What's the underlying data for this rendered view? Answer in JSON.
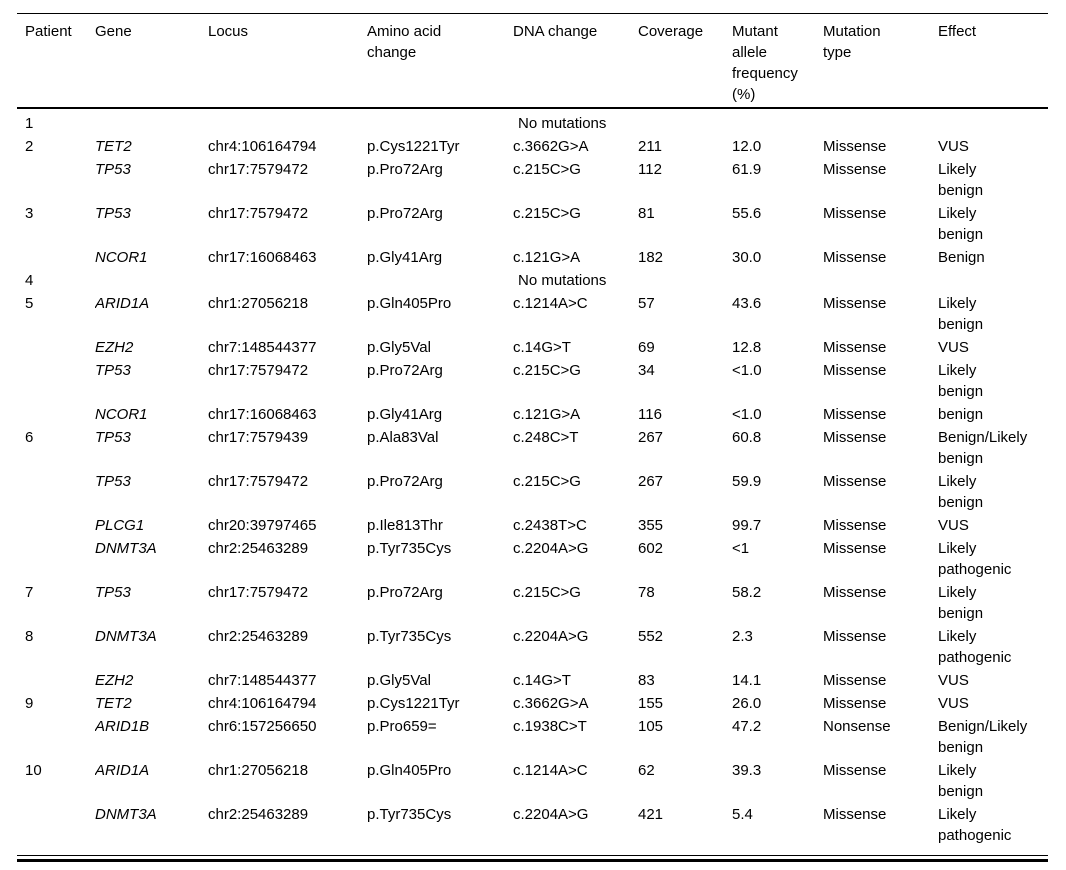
{
  "table": {
    "columns": [
      {
        "key": "patient",
        "label": "Patient"
      },
      {
        "key": "gene",
        "label": "Gene"
      },
      {
        "key": "locus",
        "label": "Locus"
      },
      {
        "key": "aa",
        "label": "Amino acid\nchange"
      },
      {
        "key": "dna",
        "label": "DNA change"
      },
      {
        "key": "coverage",
        "label": "Coverage"
      },
      {
        "key": "maf",
        "label": "Mutant\nallele\nfrequency\n(%)"
      },
      {
        "key": "type",
        "label": "Mutation\ntype"
      },
      {
        "key": "effect",
        "label": "Effect"
      }
    ],
    "rows": [
      {
        "patient": "1",
        "span_text": "No mutations"
      },
      {
        "patient": "2",
        "gene": "TET2",
        "locus": "chr4:106164794",
        "aa": "p.Cys1221Tyr",
        "dna": "c.3662G>A",
        "coverage": "211",
        "maf": "12.0",
        "type": "Missense",
        "effect": "VUS"
      },
      {
        "patient": "",
        "gene": "TP53",
        "locus": "chr17:7579472",
        "aa": "p.Pro72Arg",
        "dna": "c.215C>G",
        "coverage": "112",
        "maf": "61.9",
        "type": "Missense",
        "effect": "Likely\nbenign"
      },
      {
        "patient": "3",
        "gene": "TP53",
        "locus": "chr17:7579472",
        "aa": "p.Pro72Arg",
        "dna": "c.215C>G",
        "coverage": "81",
        "maf": "55.6",
        "type": "Missense",
        "effect": "Likely\nbenign"
      },
      {
        "patient": "",
        "gene": "NCOR1",
        "locus": "chr17:16068463",
        "aa": "p.Gly41Arg",
        "dna": "c.121G>A",
        "coverage": "182",
        "maf": "30.0",
        "type": "Missense",
        "effect": "Benign"
      },
      {
        "patient": "4",
        "span_text": "No mutations"
      },
      {
        "patient": "5",
        "gene": "ARID1A",
        "locus": "chr1:27056218",
        "aa": "p.Gln405Pro",
        "dna": "c.1214A>C",
        "coverage": "57",
        "maf": "43.6",
        "type": "Missense",
        "effect": "Likely\nbenign"
      },
      {
        "patient": "",
        "gene": "EZH2",
        "locus": "chr7:148544377",
        "aa": "p.Gly5Val",
        "dna": "c.14G>T",
        "coverage": "69",
        "maf": "12.8",
        "type": "Missense",
        "effect": "VUS"
      },
      {
        "patient": "",
        "gene": "TP53",
        "locus": "chr17:7579472",
        "aa": "p.Pro72Arg",
        "dna": "c.215C>G",
        "coverage": "34",
        "maf": "<1.0",
        "type": "Missense",
        "effect": "Likely\nbenign"
      },
      {
        "patient": "",
        "gene": "NCOR1",
        "locus": "chr17:16068463",
        "aa": "p.Gly41Arg",
        "dna": "c.121G>A",
        "coverage": "116",
        "maf": "<1.0",
        "type": "Missense",
        "effect": "benign"
      },
      {
        "patient": "6",
        "gene": "TP53",
        "locus": "chr17:7579439",
        "aa": "p.Ala83Val",
        "dna": "c.248C>T",
        "coverage": "267",
        "maf": "60.8",
        "type": "Missense",
        "effect": "Benign/Likely\nbenign"
      },
      {
        "patient": "",
        "gene": "TP53",
        "locus": "chr17:7579472",
        "aa": "p.Pro72Arg",
        "dna": "c.215C>G",
        "coverage": "267",
        "maf": "59.9",
        "type": "Missense",
        "effect": "Likely\nbenign"
      },
      {
        "patient": "",
        "gene": "PLCG1",
        "locus": "chr20:39797465",
        "aa": "p.Ile813Thr",
        "dna": "c.2438T>C",
        "coverage": "355",
        "maf": "99.7",
        "type": "Missense",
        "effect": "VUS"
      },
      {
        "patient": "",
        "gene": "DNMT3A",
        "locus": "chr2:25463289",
        "aa": "p.Tyr735Cys",
        "dna": "c.2204A>G",
        "coverage": "602",
        "maf": "<1",
        "type": "Missense",
        "effect": "Likely\npathogenic"
      },
      {
        "patient": "7",
        "gene": "TP53",
        "locus": "chr17:7579472",
        "aa": "p.Pro72Arg",
        "dna": "c.215C>G",
        "coverage": "78",
        "maf": "58.2",
        "type": "Missense",
        "effect": "Likely\nbenign"
      },
      {
        "patient": "8",
        "gene": "DNMT3A",
        "locus": "chr2:25463289",
        "aa": "p.Tyr735Cys",
        "dna": "c.2204A>G",
        "coverage": "552",
        "maf": "2.3",
        "type": "Missense",
        "effect": "Likely\npathogenic"
      },
      {
        "patient": "",
        "gene": "EZH2",
        "locus": "chr7:148544377",
        "aa": "p.Gly5Val",
        "dna": "c.14G>T",
        "coverage": "83",
        "maf": "14.1",
        "type": "Missense",
        "effect": "VUS"
      },
      {
        "patient": "9",
        "gene": "TET2",
        "locus": "chr4:106164794",
        "aa": "p.Cys1221Tyr",
        "dna": "c.3662G>A",
        "coverage": "155",
        "maf": "26.0",
        "type": "Missense",
        "effect": "VUS"
      },
      {
        "patient": "",
        "gene": "ARID1B",
        "locus": "chr6:157256650",
        "aa": "p.Pro659=",
        "dna": "c.1938C>T",
        "coverage": "105",
        "maf": "47.2",
        "type": "Nonsense",
        "effect": "Benign/Likely\nbenign"
      },
      {
        "patient": "10",
        "gene": "ARID1A",
        "locus": "chr1:27056218",
        "aa": "p.Gln405Pro",
        "dna": "c.1214A>C",
        "coverage": "62",
        "maf": "39.3",
        "type": "Missense",
        "effect": "Likely\nbenign"
      },
      {
        "patient": "",
        "gene": "DNMT3A",
        "locus": "chr2:25463289",
        "aa": "p.Tyr735Cys",
        "dna": "c.2204A>G",
        "coverage": "421",
        "maf": "5.4",
        "type": "Missense",
        "effect": "Likely\npathogenic"
      }
    ],
    "colors": {
      "rule": "#000000",
      "text": "#000000",
      "background": "#ffffff"
    }
  }
}
